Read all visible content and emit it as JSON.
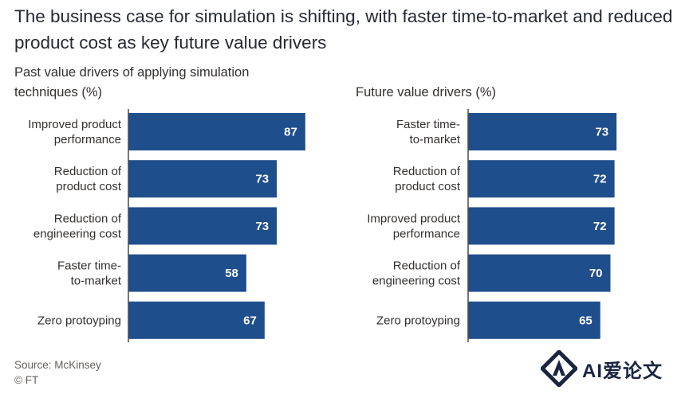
{
  "title": "The business case for simulation is shifting, with faster time-to-market and reduced product cost as key future value drivers",
  "source": "Source: McKinsey",
  "credit": "© FT",
  "watermark": "AI爱论文",
  "colors": {
    "bar": "#1f4e8c",
    "axis": "#4a4a4a",
    "value_text": "#ffffff"
  },
  "chart_data": [
    {
      "type": "bar",
      "orientation": "horizontal",
      "title": "Past value drivers of applying simulation techniques (%)",
      "categories": [
        [
          "Improved product",
          "performance"
        ],
        [
          "Reduction of",
          "product cost"
        ],
        [
          "Reduction of",
          "engineering cost"
        ],
        [
          "Faster time-",
          "to-market"
        ],
        [
          "Zero protoyping"
        ]
      ],
      "values": [
        87,
        73,
        73,
        58,
        67
      ],
      "xlim": [
        0,
        100
      ]
    },
    {
      "type": "bar",
      "orientation": "horizontal",
      "title": "Future value drivers (%)",
      "categories": [
        [
          "Faster time-",
          "to-market"
        ],
        [
          "Reduction of",
          "product cost"
        ],
        [
          "Improved product",
          "performance"
        ],
        [
          "Reduction of",
          "engineering cost"
        ],
        [
          "Zero protoyping"
        ]
      ],
      "values": [
        73,
        72,
        72,
        70,
        65
      ],
      "xlim": [
        0,
        100
      ]
    }
  ]
}
